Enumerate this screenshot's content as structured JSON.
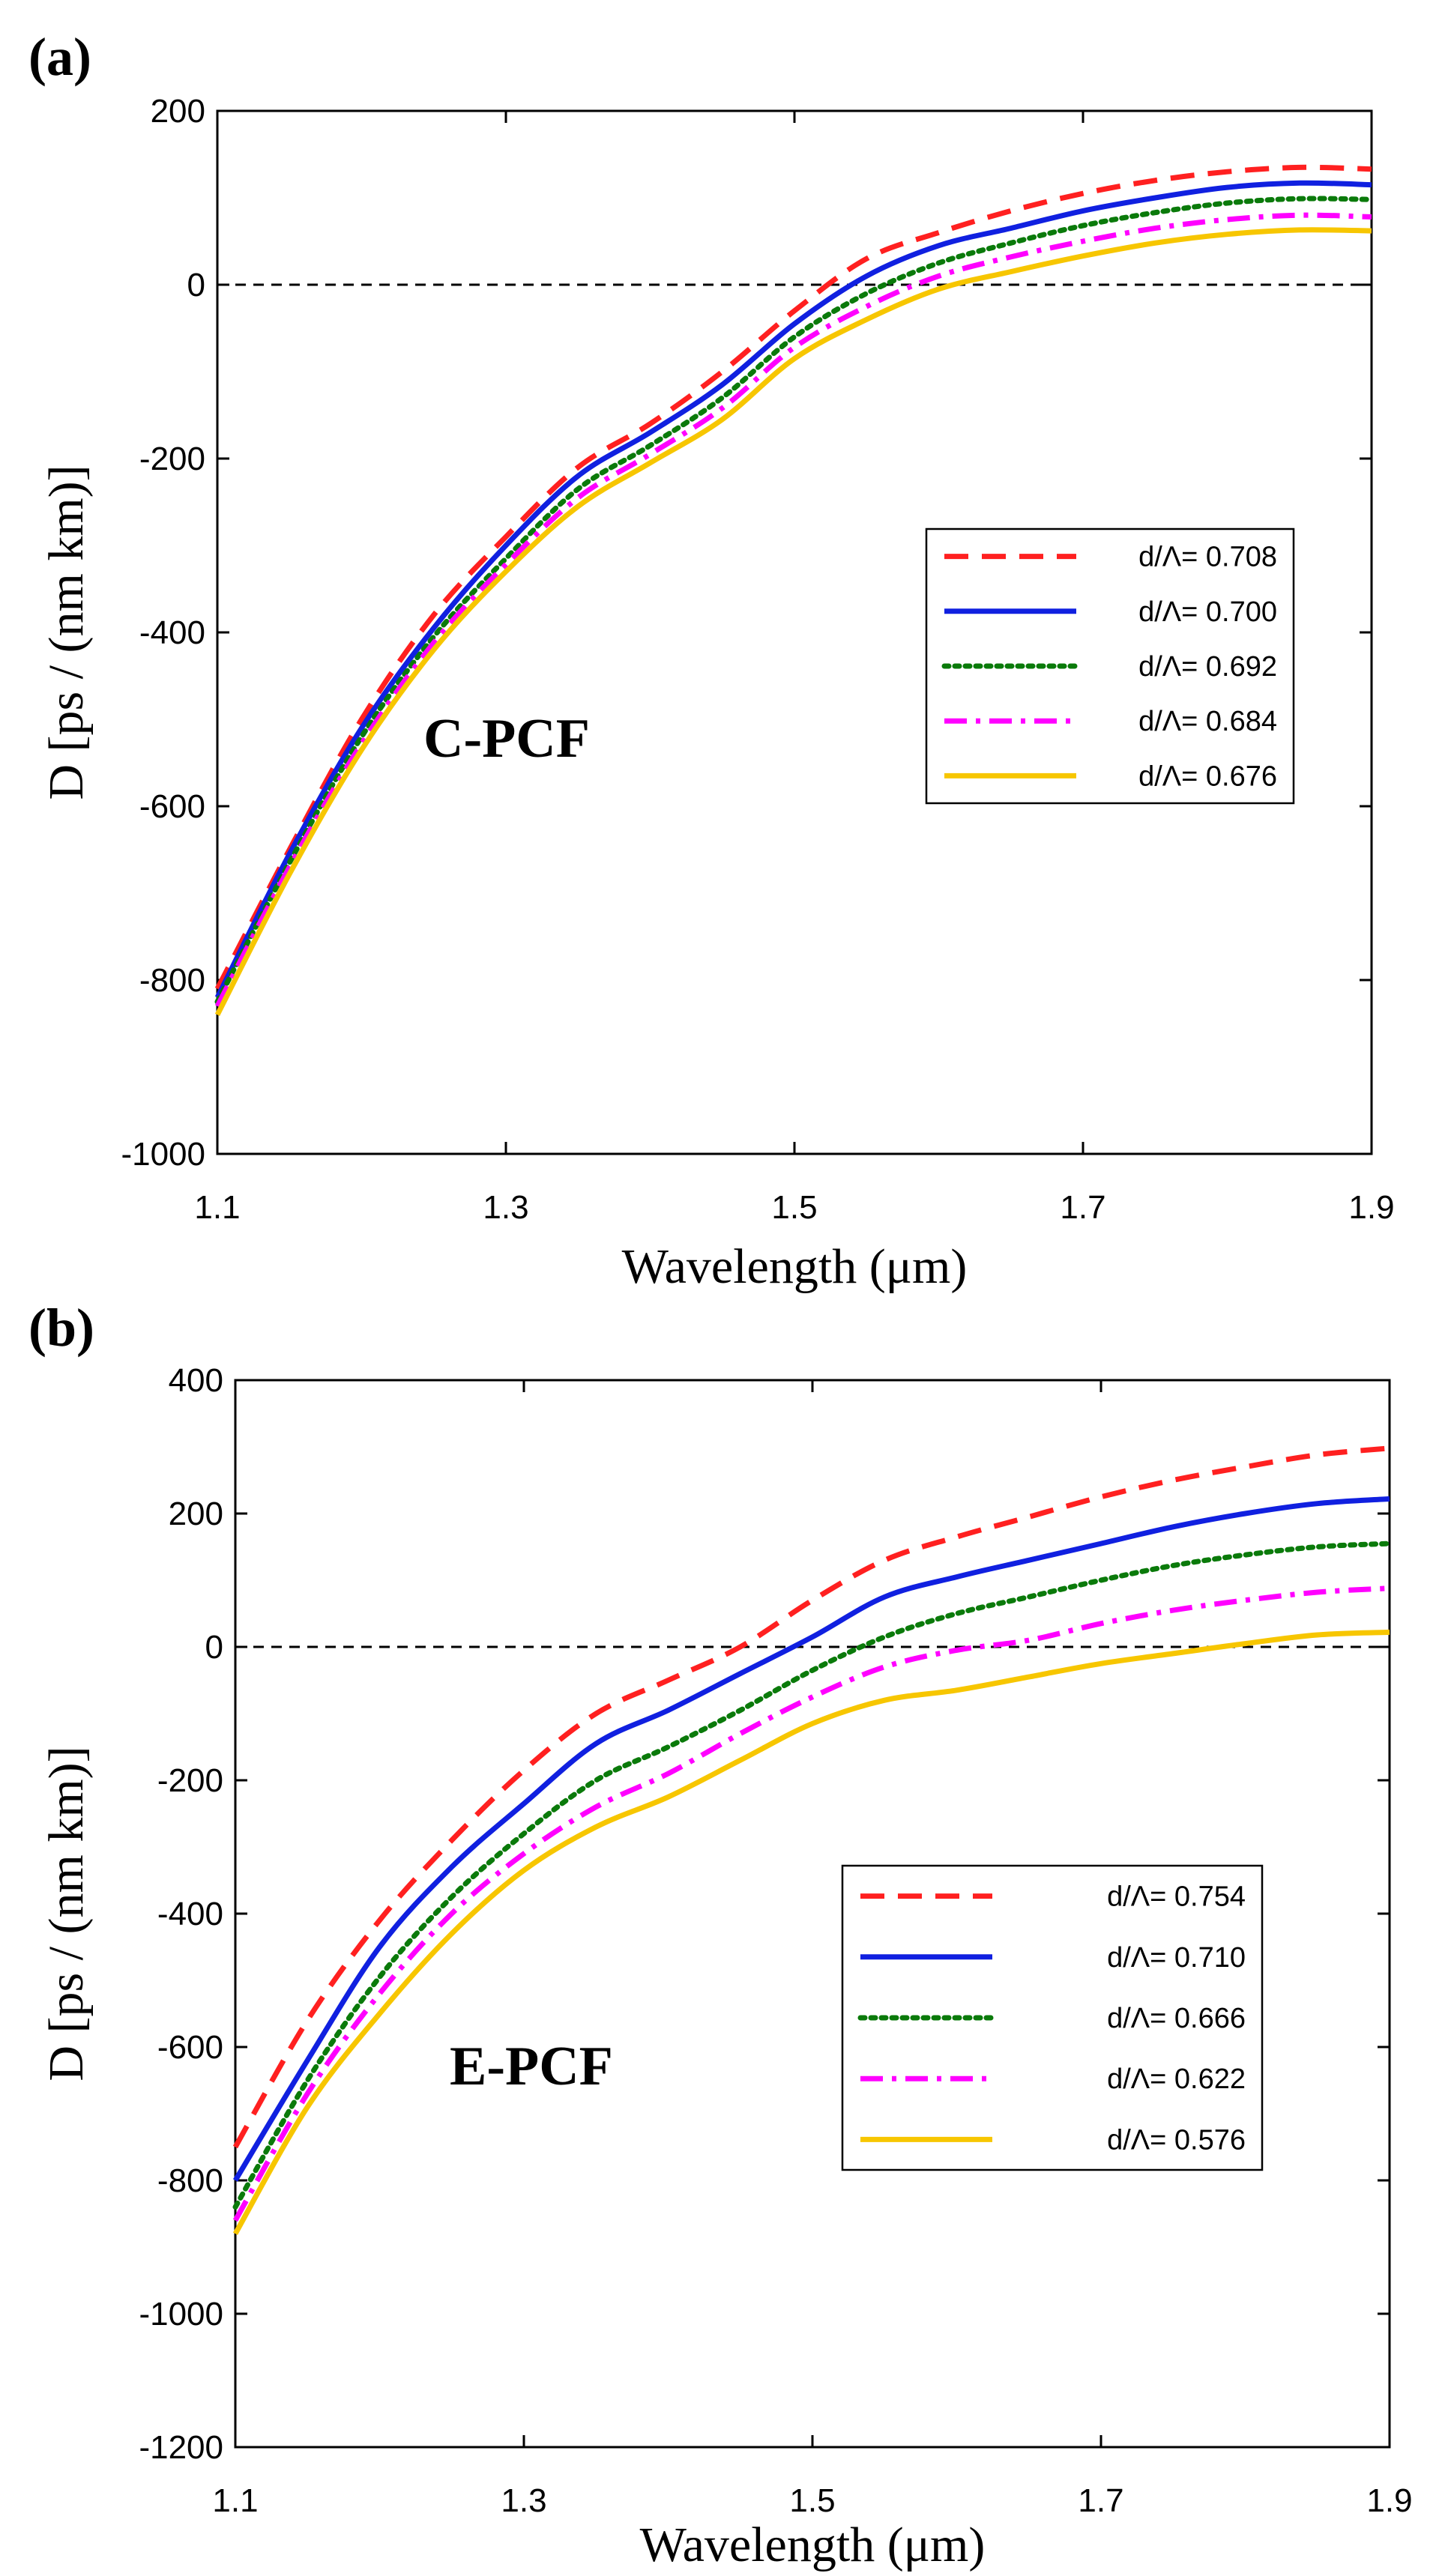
{
  "figure": {
    "panel_count": 2
  },
  "chart_data": [
    {
      "type": "line",
      "panel_label": "(a)",
      "annotation": "C-PCF",
      "xlabel": "Wavelength (μm)",
      "ylabel": "D [ps / (nm km)]",
      "xlim": [
        1.1,
        1.9
      ],
      "ylim": [
        -1000,
        200
      ],
      "x_ticks": [
        1.1,
        1.3,
        1.5,
        1.7,
        1.9
      ],
      "x_tick_labels": [
        "1.1",
        "1.3",
        "1.5",
        "1.7",
        "1.9"
      ],
      "y_ticks": [
        200,
        0,
        -200,
        -400,
        -600,
        -800,
        -1000
      ],
      "y_tick_labels": [
        "200",
        "0",
        "-200",
        "-400",
        "-600",
        "-800",
        "-1000"
      ],
      "reference_line": {
        "y": 0,
        "style": "dashed",
        "color": "#000000"
      },
      "legend_position": "center-right",
      "x": [
        1.1,
        1.15,
        1.2,
        1.25,
        1.3,
        1.35,
        1.4,
        1.45,
        1.5,
        1.55,
        1.6,
        1.65,
        1.7,
        1.75,
        1.8,
        1.85,
        1.9
      ],
      "series": [
        {
          "name": "d/Λ= 0.708",
          "color": "#ff2020",
          "style": "dashed",
          "values": [
            -810,
            -650,
            -500,
            -380,
            -290,
            -210,
            -160,
            -100,
            -30,
            30,
            60,
            85,
            105,
            120,
            130,
            135,
            133
          ]
        },
        {
          "name": "d/Λ= 0.700",
          "color": "#1020e0",
          "style": "solid",
          "values": [
            -820,
            -655,
            -510,
            -395,
            -300,
            -220,
            -170,
            -115,
            -45,
            10,
            45,
            65,
            85,
            100,
            112,
            117,
            115
          ]
        },
        {
          "name": "d/Λ= 0.692",
          "color": "#0a7a0a",
          "style": "dotted",
          "values": [
            -825,
            -665,
            -520,
            -405,
            -315,
            -235,
            -185,
            -130,
            -60,
            -10,
            25,
            48,
            68,
            83,
            94,
            99,
            98
          ]
        },
        {
          "name": "d/Λ= 0.684",
          "color": "#ff00ff",
          "style": "dashdot",
          "values": [
            -830,
            -670,
            -528,
            -412,
            -322,
            -245,
            -195,
            -142,
            -72,
            -25,
            10,
            32,
            50,
            65,
            75,
            80,
            78
          ]
        },
        {
          "name": "d/Λ= 0.676",
          "color": "#f7c600",
          "style": "solid",
          "values": [
            -840,
            -678,
            -535,
            -420,
            -330,
            -255,
            -205,
            -155,
            -85,
            -40,
            -5,
            15,
            33,
            48,
            58,
            63,
            62
          ]
        }
      ]
    },
    {
      "type": "line",
      "panel_label": "(b)",
      "annotation": "E-PCF",
      "xlabel": "Wavelength (μm)",
      "ylabel": "D [ps / (nm km)]",
      "xlim": [
        1.1,
        1.9
      ],
      "ylim": [
        -1200,
        400
      ],
      "x_ticks": [
        1.1,
        1.3,
        1.5,
        1.7,
        1.9
      ],
      "x_tick_labels": [
        "1.1",
        "1.3",
        "1.5",
        "1.7",
        "1.9"
      ],
      "y_ticks": [
        400,
        200,
        0,
        -200,
        -400,
        -600,
        -800,
        -1000,
        -1200
      ],
      "y_tick_labels": [
        "400",
        "200",
        "0",
        "-200",
        "-400",
        "-600",
        "-800",
        "-1000",
        "-1200"
      ],
      "reference_line": {
        "y": 0,
        "style": "dashed",
        "color": "#000000"
      },
      "legend_position": "center-right",
      "x": [
        1.1,
        1.15,
        1.2,
        1.25,
        1.3,
        1.35,
        1.4,
        1.45,
        1.5,
        1.55,
        1.6,
        1.65,
        1.7,
        1.75,
        1.8,
        1.85,
        1.9
      ],
      "series": [
        {
          "name": "d/Λ= 0.754",
          "color": "#ff2020",
          "style": "dashed",
          "values": [
            -750,
            -560,
            -410,
            -290,
            -185,
            -100,
            -50,
            0,
            70,
            130,
            165,
            195,
            225,
            250,
            270,
            288,
            298
          ]
        },
        {
          "name": "d/Λ= 0.710",
          "color": "#1020e0",
          "style": "solid",
          "values": [
            -800,
            -620,
            -450,
            -330,
            -235,
            -145,
            -95,
            -40,
            15,
            75,
            105,
            130,
            155,
            180,
            200,
            215,
            222
          ]
        },
        {
          "name": "d/Λ= 0.666",
          "color": "#0a7a0a",
          "style": "dotted",
          "values": [
            -840,
            -650,
            -495,
            -375,
            -280,
            -200,
            -150,
            -95,
            -35,
            15,
            50,
            75,
            100,
            122,
            138,
            150,
            155
          ]
        },
        {
          "name": "d/Λ= 0.622",
          "color": "#ff00ff",
          "style": "dashdot",
          "values": [
            -860,
            -670,
            -520,
            -400,
            -310,
            -240,
            -190,
            -130,
            -75,
            -30,
            -5,
            10,
            35,
            55,
            70,
            82,
            88
          ]
        },
        {
          "name": "d/Λ= 0.576",
          "color": "#f7c600",
          "style": "solid",
          "values": [
            -880,
            -690,
            -550,
            -430,
            -335,
            -270,
            -225,
            -170,
            -115,
            -80,
            -65,
            -45,
            -25,
            -10,
            5,
            18,
            22
          ]
        }
      ]
    }
  ]
}
